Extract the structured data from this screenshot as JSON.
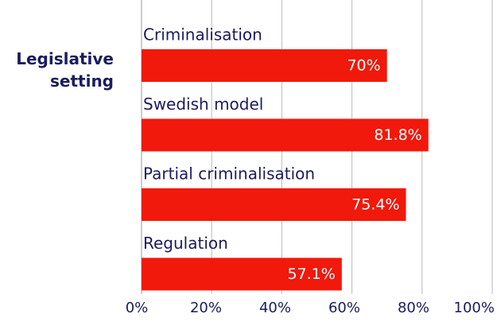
{
  "chart_data": {
    "type": "bar",
    "orientation": "horizontal",
    "y_axis_label": "Legislative setting",
    "categories": [
      "Criminalisation",
      "Swedish model",
      "Partial criminalisation",
      "Regulation"
    ],
    "values": [
      70,
      81.8,
      75.4,
      57.1
    ],
    "value_labels": [
      "70%",
      "81.8%",
      "75.4%",
      "57.1%"
    ],
    "color": "#f0190b",
    "xlim": [
      0,
      100
    ],
    "xticks": [
      {
        "value": 0,
        "label": "0%"
      },
      {
        "value": 20,
        "label": "20%"
      },
      {
        "value": 40,
        "label": "40%"
      },
      {
        "value": 60,
        "label": "60%"
      },
      {
        "value": 80,
        "label": "80%"
      },
      {
        "value": 100,
        "label": "100%"
      }
    ],
    "grid": true
  }
}
